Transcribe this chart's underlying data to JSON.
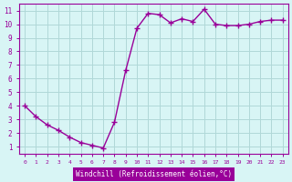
{
  "x": [
    0,
    1,
    2,
    3,
    4,
    5,
    6,
    7,
    8,
    9,
    10,
    11,
    12,
    13,
    14,
    15,
    16,
    17,
    18,
    19,
    20,
    21,
    22,
    23
  ],
  "y": [
    4.0,
    3.2,
    2.6,
    2.2,
    1.7,
    1.3,
    1.1,
    0.9,
    2.8,
    6.6,
    9.7,
    10.8,
    10.7,
    10.1,
    10.4,
    10.2,
    11.1,
    10.0,
    9.9,
    9.9,
    10.0,
    10.2,
    10.3,
    10.3
  ],
  "line_color": "#990099",
  "marker": "+",
  "marker_size": 4,
  "bg_color": "#d8f5f5",
  "grid_color": "#b0d8d8",
  "xlabel": "Windchill (Refroidissement éolien,°C)",
  "xlabel_color": "#ffffff",
  "xlabel_bg": "#990099",
  "ylabel_ticks": [
    1,
    2,
    3,
    4,
    5,
    6,
    7,
    8,
    9,
    10,
    11
  ],
  "xticks": [
    0,
    1,
    2,
    3,
    4,
    5,
    6,
    7,
    8,
    9,
    10,
    11,
    12,
    13,
    14,
    15,
    16,
    17,
    18,
    19,
    20,
    21,
    22,
    23
  ],
  "ylim": [
    0.5,
    11.5
  ],
  "xlim": [
    -0.5,
    23.5
  ],
  "tick_color": "#990099",
  "tick_label_color": "#990099",
  "spine_color": "#990099",
  "line_width": 1.0
}
